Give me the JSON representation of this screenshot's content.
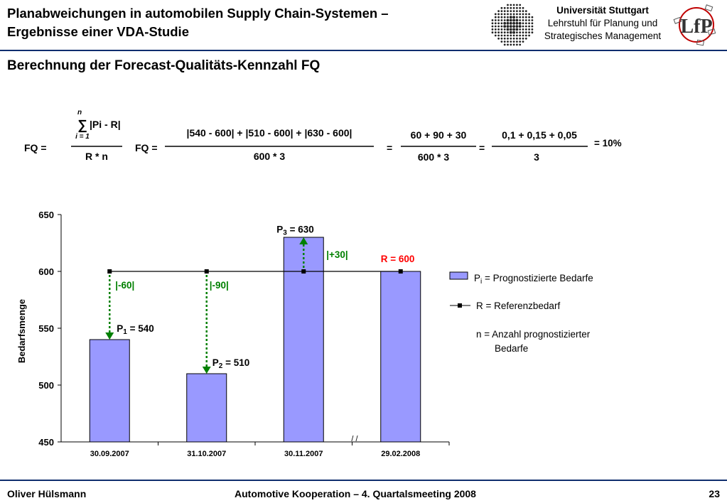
{
  "header": {
    "title_line1": "Planabweichungen in automobilen Supply Chain-Systemen –",
    "title_line2": "Ergebnisse einer VDA-Studie",
    "university": "Universität Stuttgart",
    "chair_line1": "Lehrstuhl für Planung und",
    "chair_line2": "Strategisches Management",
    "logo_text": "LfP"
  },
  "section_title": "Berechnung der Forecast-Qualitäts-Kennzahl FQ",
  "formula": {
    "lhs": "FQ =",
    "sum_top": "n",
    "sum_bottom": "i = 1",
    "numerator": "|Pi - R|",
    "denominator": "R * n",
    "fq2": "FQ =",
    "num2": "|540 - 600| + |510 - 600| + |630 - 600|",
    "den2": "600 * 3",
    "eq2": "=",
    "num3": "60 + 90 + 30",
    "den3": "600 * 3",
    "eq3": "=",
    "num4": "0,1 + 0,15 + 0,05",
    "den4": "3",
    "result": "= 10%"
  },
  "chart_data": {
    "type": "bar",
    "categories": [
      "30.09.2007",
      "31.10.2007",
      "30.11.2007",
      "29.02.2008"
    ],
    "series": [
      {
        "name": "Pi = Prognostizierte Bedarfe",
        "type": "bar",
        "values": [
          540,
          510,
          630,
          600
        ],
        "color": "#9999ff"
      },
      {
        "name": "R = Referenzbedarf",
        "type": "line",
        "values": [
          600,
          600,
          600,
          600
        ],
        "color": "#000000"
      }
    ],
    "ylabel": "Bedarfsmenge",
    "xlabel": "",
    "ylim": [
      450,
      650
    ],
    "yticks": [
      450,
      500,
      550,
      600,
      650
    ],
    "grid": false,
    "legend_position": "right",
    "legend_note_line1": "n = Anzahl prognostizierter",
    "legend_note_line2": "Bedarfe",
    "axis_break": "/ /",
    "annotations": {
      "bar_labels": [
        {
          "text": "P1 = 540",
          "sub": "1",
          "prefix": "P",
          "suffix": " = 540"
        },
        {
          "text": "P2 = 510",
          "sub": "2",
          "prefix": "P",
          "suffix": " = 510"
        },
        {
          "text": "P3 = 630",
          "sub": "3",
          "prefix": "P",
          "suffix": " = 630"
        }
      ],
      "deviations": [
        "|-60|",
        "|-90|",
        "|+30|"
      ],
      "reference_label": "R = 600",
      "deviation_color": "#008000",
      "reference_color": "#ff0000"
    }
  },
  "footer": {
    "author": "Oliver Hülsmann",
    "event": "Automotive Kooperation – 4. Quartalsmeeting 2008",
    "page": "23"
  }
}
